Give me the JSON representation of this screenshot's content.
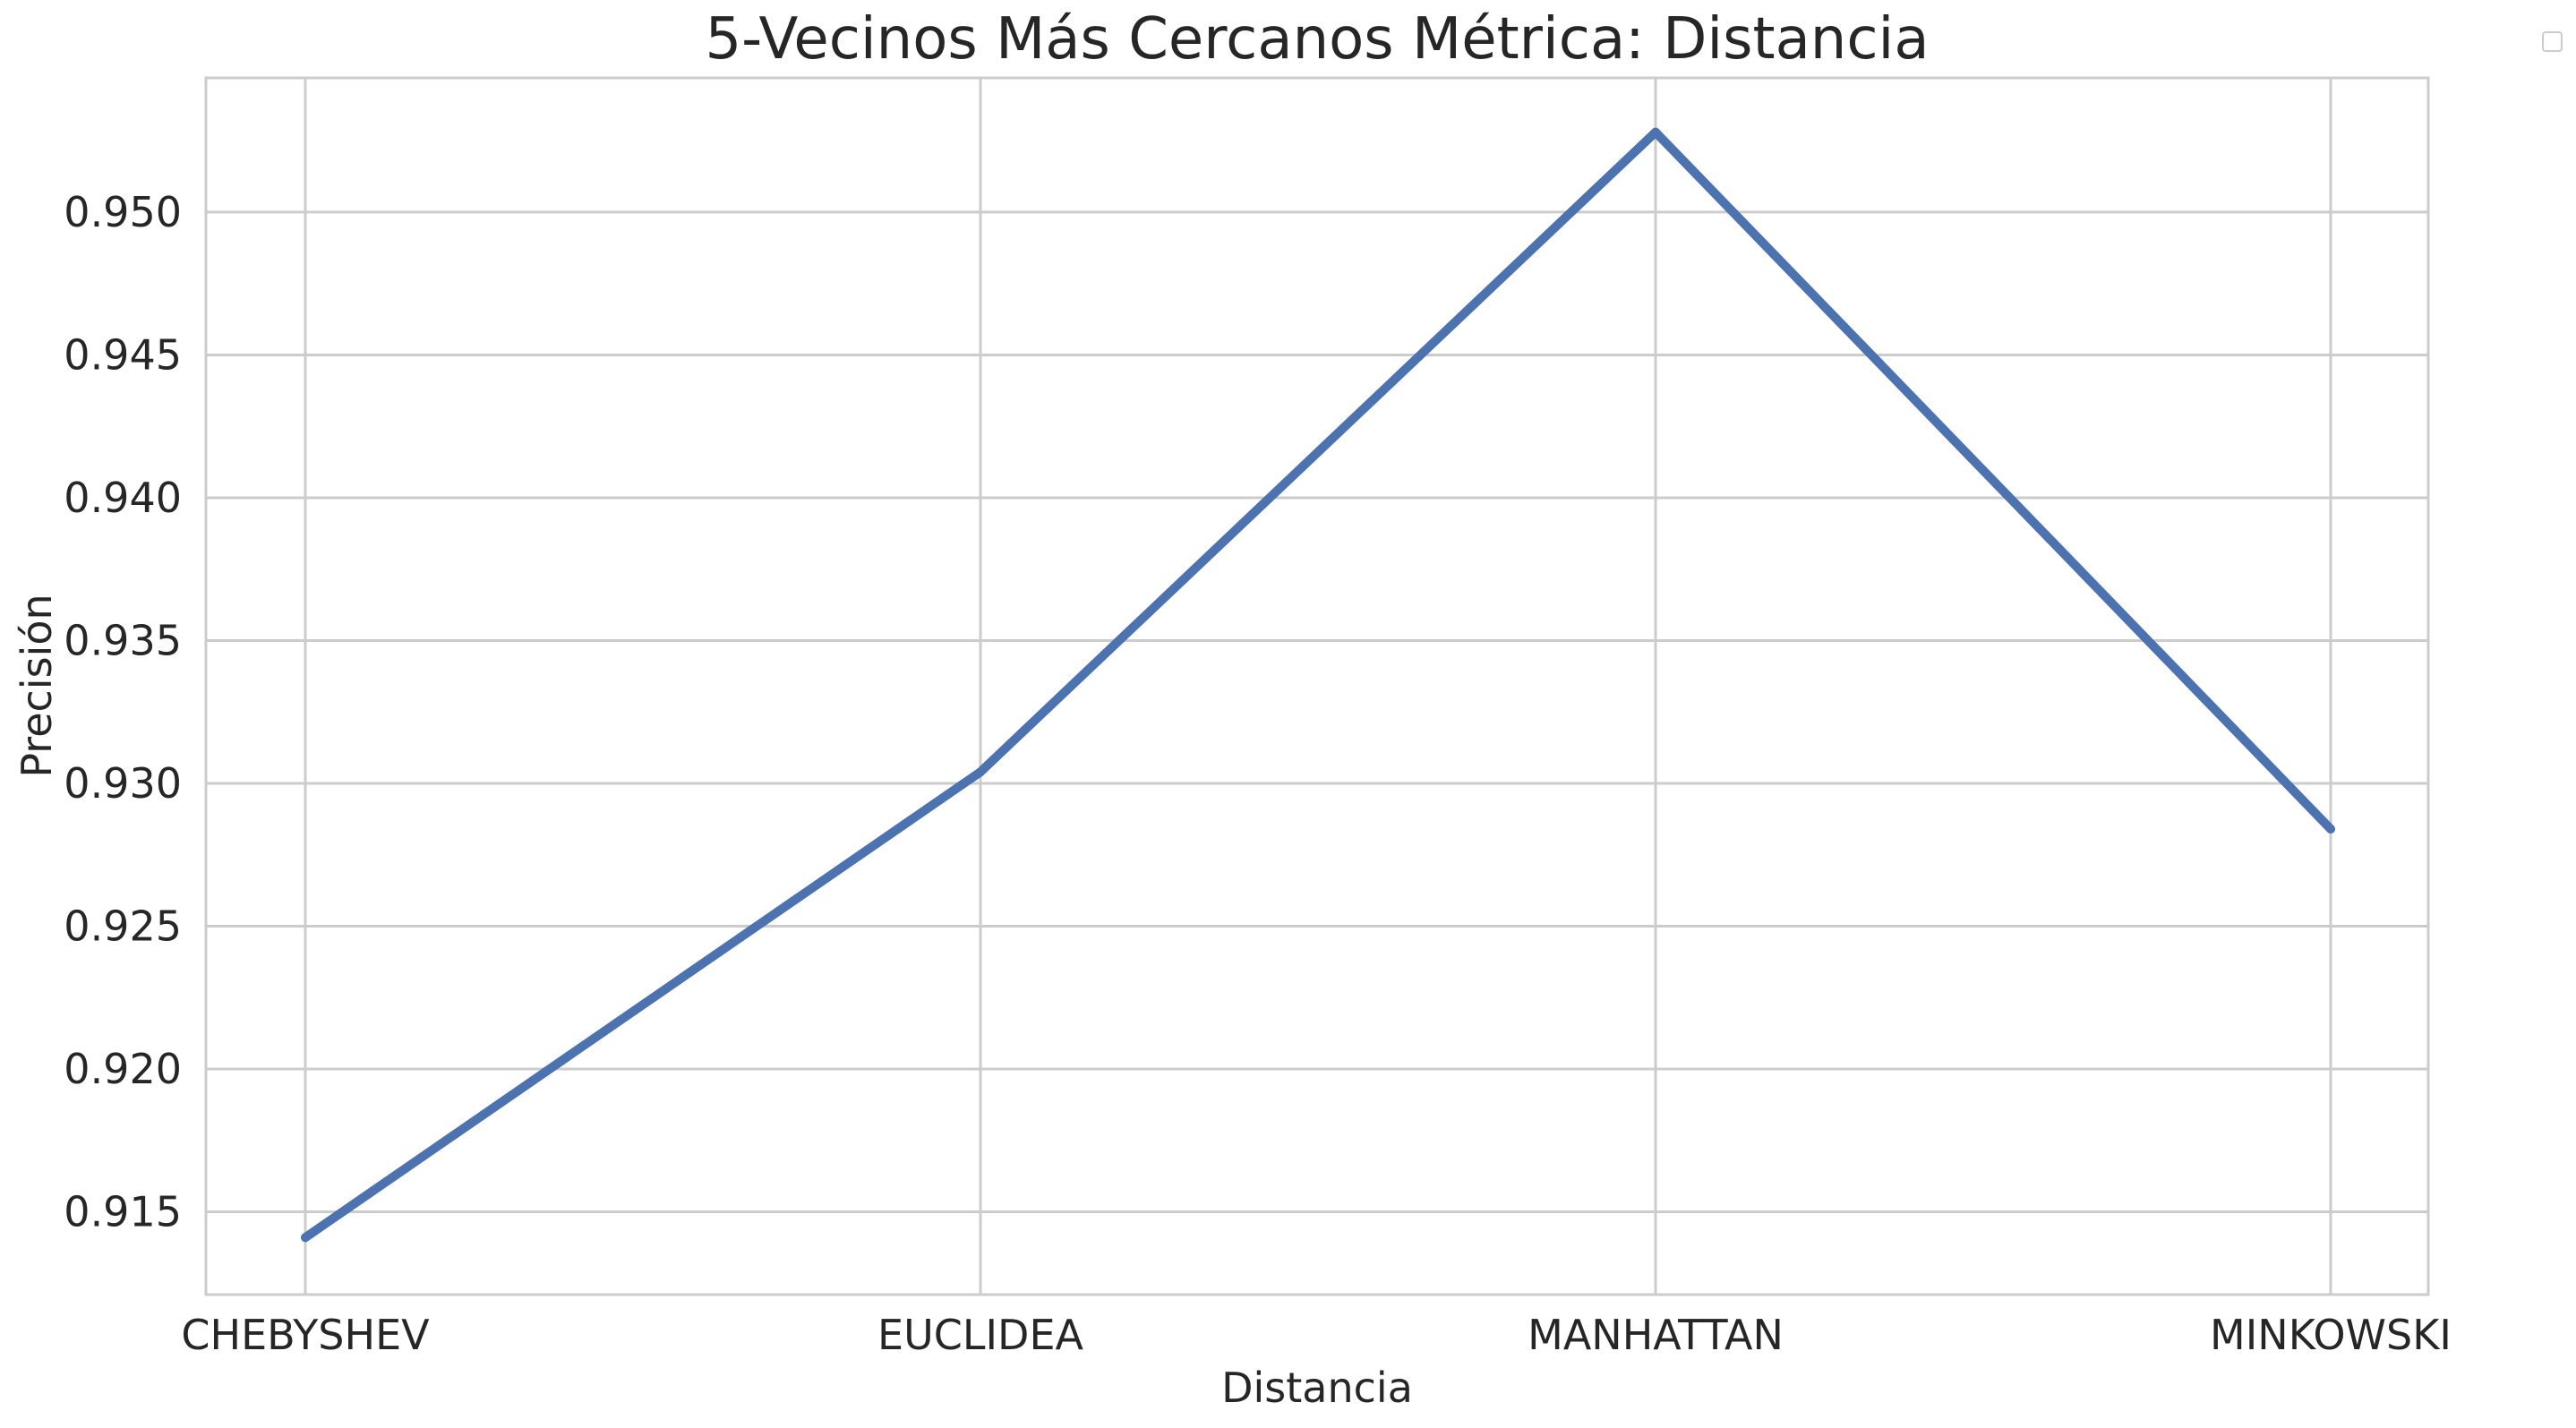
{
  "chart_data": {
    "type": "line",
    "title": "5-Vecinos Más Cercanos Métrica: Distancia",
    "xlabel": "Distancia",
    "ylabel": "Precisión",
    "categories": [
      "CHEBYSHEV",
      "EUCLIDEA",
      "MANHATTAN",
      "MINKOWSKI"
    ],
    "series": [
      {
        "values": [
          0.9141,
          0.9304,
          0.9528,
          0.9284
        ],
        "color": "#4c72b0"
      }
    ],
    "ylim": [
      0.9121,
      0.9547
    ],
    "yticks": [
      0.915,
      0.92,
      0.925,
      0.93,
      0.935,
      0.94,
      0.945,
      0.95
    ],
    "ytick_labels": [
      "0.915",
      "0.920",
      "0.925",
      "0.930",
      "0.935",
      "0.940",
      "0.945",
      "0.950"
    ],
    "grid": true,
    "legend": "top-right, outside plot, empty",
    "colors": {
      "grid": "#cccccc",
      "frame": "#cccccc",
      "text": "#262626",
      "legend_border": "#cccccc"
    }
  }
}
